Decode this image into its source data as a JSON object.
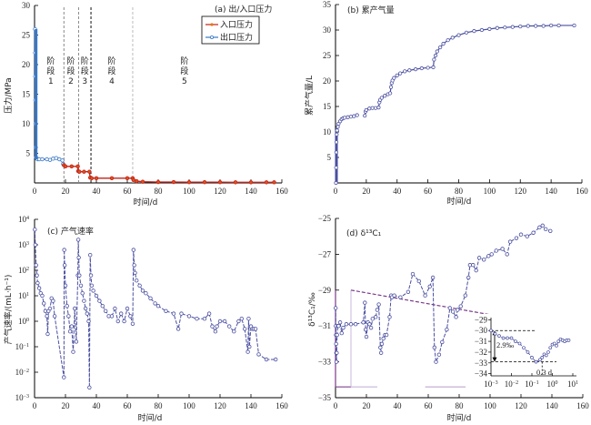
{
  "chart_data": [
    {
      "id": "a",
      "type": "line",
      "title": "(a) 出/入口压力",
      "xlabel": "时间/d",
      "ylabel": "压力/MPa",
      "xlim": [
        0,
        160
      ],
      "ylim": [
        0,
        30
      ],
      "xticks": [
        0,
        20,
        40,
        60,
        80,
        100,
        120,
        140,
        160
      ],
      "yticks": [
        5,
        10,
        15,
        20,
        25,
        30
      ],
      "legend_position": "top-right",
      "legend": [
        "入口压力",
        "出口压力"
      ],
      "stage_lines": [
        {
          "x": 19,
          "style": "gray-dashed"
        },
        {
          "x": 28.5,
          "style": "gray-dashed"
        },
        {
          "x": 36.5,
          "style": "black-dashed"
        },
        {
          "x": 63.5,
          "style": "lightgray-dashed"
        }
      ],
      "stages": [
        {
          "label": "阶段",
          "num": "1",
          "x": 10.5
        },
        {
          "label": "阶段",
          "num": "2",
          "x": 23.5
        },
        {
          "label": "阶段",
          "num": "3",
          "x": 32.5
        },
        {
          "label": "阶段",
          "num": "4",
          "x": 50
        },
        {
          "label": "阶段",
          "num": "5",
          "x": 97
        }
      ],
      "series": [
        {
          "name": "出口压力",
          "color": "#3a78c4",
          "x": [
            0.3,
            0.35,
            0.4,
            0.5,
            0.6,
            0.8,
            1,
            1.5,
            2,
            3,
            5,
            8,
            10,
            12,
            14,
            16,
            18,
            18.5,
            19
          ],
          "y": [
            26,
            22,
            18,
            14,
            10,
            6,
            4.3,
            4.1,
            4.0,
            4.0,
            4.0,
            4.0,
            3.9,
            4.1,
            4.2,
            4.0,
            3.8,
            3.2,
            3.0
          ]
        },
        {
          "name": "入口压力",
          "color": "#c0201a",
          "x": [
            19,
            20,
            24,
            28,
            28.2,
            29,
            32,
            35.5,
            36,
            37,
            40,
            50,
            60,
            63.5,
            64,
            66,
            70,
            80,
            90,
            100,
            110,
            120,
            130,
            140,
            150,
            155
          ],
          "y": [
            3.0,
            2.8,
            2.8,
            2.8,
            2.0,
            1.9,
            1.9,
            1.9,
            0.9,
            0.8,
            0.8,
            0.8,
            0.8,
            0.8,
            0.5,
            0.3,
            0.2,
            0.15,
            0.15,
            0.12,
            0.12,
            0.12,
            0.1,
            0.1,
            0.1,
            0.1
          ]
        }
      ]
    },
    {
      "id": "b",
      "type": "scatter",
      "title": "(b) 累产气量",
      "xlabel": "时间/d",
      "ylabel": "累产气量/L",
      "xlim": [
        0,
        160
      ],
      "ylim": [
        0,
        35
      ],
      "xticks": [
        0,
        20,
        40,
        60,
        80,
        100,
        120,
        140,
        160
      ],
      "yticks": [
        5,
        10,
        15,
        20,
        25,
        30,
        35
      ],
      "series": [
        {
          "name": "累产气量",
          "color": "#4a4fa0",
          "x": [
            0.3,
            0.4,
            0.5,
            0.6,
            0.8,
            1,
            1.5,
            2,
            3,
            4,
            5,
            6,
            8,
            10,
            12,
            14,
            19,
            19.5,
            20,
            22,
            24,
            26,
            28,
            28.5,
            29,
            30,
            32,
            34,
            35.5,
            36,
            36.5,
            37,
            38,
            40,
            42,
            45,
            48,
            52,
            56,
            60,
            63.5,
            64,
            65,
            66,
            68,
            70,
            73,
            76,
            80,
            85,
            90,
            95,
            100,
            105,
            110,
            115,
            120,
            125,
            130,
            135,
            140,
            145,
            155
          ],
          "y": [
            0,
            3,
            6,
            8,
            9.5,
            10.3,
            11,
            11.6,
            12.1,
            12.5,
            12.7,
            12.8,
            12.9,
            13.0,
            13.1,
            13.3,
            13.2,
            14.0,
            14.3,
            14.6,
            14.7,
            14.7,
            14.8,
            15.8,
            16.3,
            16.7,
            17.1,
            17.4,
            17.6,
            18.8,
            19.6,
            20.1,
            20.6,
            21.1,
            21.5,
            21.9,
            22.1,
            22.3,
            22.5,
            22.6,
            22.7,
            24.2,
            25.0,
            25.8,
            26.6,
            27.3,
            28.0,
            28.5,
            29.0,
            29.5,
            29.8,
            30.0,
            30.2,
            30.4,
            30.5,
            30.6,
            30.7,
            30.8,
            30.8,
            30.8,
            30.9,
            30.9,
            30.9
          ]
        }
      ]
    },
    {
      "id": "c",
      "type": "line",
      "title": "(c) 产气速率",
      "xlabel": "时间/d",
      "ylabel": "产气速率/(mL·h⁻¹)",
      "xlim": [
        0,
        160
      ],
      "ylim_log10": [
        -3,
        4
      ],
      "xticks": [
        0,
        20,
        40,
        60,
        80,
        100,
        120,
        140,
        160
      ],
      "ytick_exponents": [
        4,
        3,
        2,
        1,
        0,
        -1,
        -2,
        -3
      ],
      "series": [
        {
          "name": "产气速率",
          "color": "#4a4fa0",
          "x": [
            0.2,
            0.5,
            1,
            1.5,
            2,
            3,
            4,
            5,
            6,
            7,
            8,
            8.5,
            9,
            10,
            11,
            12,
            13,
            19,
            19.2,
            19.5,
            20,
            21,
            22,
            23,
            24,
            25,
            26,
            27,
            28,
            28.3,
            28.6,
            29,
            30,
            31,
            32,
            33,
            34,
            35,
            35.5,
            36,
            36.5,
            37,
            38,
            40,
            42,
            44,
            46,
            48,
            50,
            52,
            54,
            56,
            58,
            60,
            62,
            63.5,
            64,
            64.5,
            65,
            66,
            68,
            70,
            72,
            75,
            78,
            80,
            85,
            90,
            93,
            95,
            100,
            105,
            110,
            113,
            115,
            117,
            118,
            120,
            123,
            126,
            129,
            132,
            134,
            136,
            138,
            138.5,
            139,
            140,
            141,
            142,
            143,
            145,
            150,
            156
          ],
          "log10y": [
            3.6,
            3.0,
            2.2,
            1.8,
            1.5,
            1.3,
            1.1,
            1.0,
            0.7,
            0.4,
            0.2,
            -0.5,
            0.4,
            0.5,
            0.9,
            0.8,
            0.2,
            -2.2,
            2.8,
            2.2,
            1.4,
            0.6,
            0.2,
            -0.4,
            -0.2,
            -1.2,
            0.5,
            -0.8,
            1.8,
            3.2,
            2.5,
            1.8,
            1.4,
            1.1,
            0.8,
            0.5,
            0.3,
            0.0,
            -2.6,
            2.6,
            1.8,
            1.4,
            1.2,
            1.0,
            0.8,
            0.6,
            0.4,
            0.2,
            0.2,
            0.5,
            0.0,
            0.3,
            0.0,
            0.5,
            0.2,
            -0.1,
            2.8,
            2.2,
            1.9,
            1.6,
            1.4,
            1.2,
            1.1,
            0.9,
            0.7,
            0.6,
            0.4,
            0.3,
            -0.3,
            0.3,
            0.2,
            0.1,
            0.1,
            0.3,
            -0.2,
            -0.4,
            -0.2,
            0.0,
            0.0,
            -0.2,
            -0.4,
            0.0,
            0.1,
            -0.3,
            -1.2,
            0.1,
            -1.0,
            -0.2,
            -0.3,
            -0.3,
            -0.3,
            -1.3,
            -1.5,
            -1.5
          ]
        }
      ]
    },
    {
      "id": "d",
      "type": "line",
      "title": "(d) δ¹³C₁",
      "xlabel": "时间/d",
      "ylabel": "δ¹³C₁/‰",
      "xlim": [
        0,
        160
      ],
      "ylim": [
        -35,
        -25
      ],
      "xticks": [
        0,
        20,
        40,
        60,
        80,
        100,
        120,
        140,
        160
      ],
      "yticks": [
        -25,
        -27,
        -29,
        -31,
        -33,
        -35
      ],
      "trend_line": {
        "x": [
          10,
          102
        ],
        "y": [
          -29.0,
          -30.4
        ],
        "color": "#7a3a8a"
      },
      "series": [
        {
          "name": "δ¹³C₁",
          "color": "#4a4fa0",
          "x": [
            0.1,
            0.2,
            0.3,
            0.4,
            0.5,
            0.6,
            0.8,
            1,
            1.5,
            2,
            3,
            4,
            5,
            7,
            10,
            13,
            18,
            19,
            19.5,
            20,
            21,
            22,
            23,
            24,
            26,
            27,
            28,
            29,
            29.5,
            30,
            31,
            32,
            33,
            35,
            36,
            36.5,
            38,
            42,
            47,
            50,
            54,
            58,
            61,
            63,
            64,
            65,
            67,
            69,
            72,
            74,
            76,
            78,
            79,
            81,
            84,
            86,
            87,
            89,
            91,
            93,
            96,
            99,
            101,
            104,
            108,
            111,
            113,
            117,
            120,
            124,
            128,
            132,
            134,
            136,
            139
          ],
          "y": [
            -30.0,
            -31.0,
            -31.5,
            -32.0,
            -32.5,
            -33.0,
            -32.5,
            -31.5,
            -31.0,
            -31.0,
            -30.8,
            -31.4,
            -31.1,
            -30.9,
            -30.9,
            -30.9,
            -30.8,
            -29.7,
            -31.2,
            -31.6,
            -30.8,
            -30.9,
            -31.1,
            -30.6,
            -30.5,
            -30.1,
            -29.8,
            -32.2,
            -32.5,
            -32.0,
            -31.7,
            -31.5,
            -31.5,
            -30.5,
            -29.3,
            -29.4,
            -29.3,
            -29.4,
            -29.1,
            -28.1,
            -28.5,
            -29.3,
            -28.8,
            -28.3,
            -32.2,
            -33.0,
            -32.6,
            -31.9,
            -31.2,
            -30.0,
            -30.2,
            -30.5,
            -30.1,
            -29.9,
            -29.3,
            -28.3,
            -27.6,
            -27.6,
            -27.9,
            -27.2,
            -27.3,
            -27.1,
            -27.0,
            -26.8,
            -26.7,
            -27.0,
            -26.3,
            -26.1,
            -25.9,
            -26.0,
            -25.8,
            -25.5,
            -25.4,
            -25.6,
            -25.7
          ]
        }
      ],
      "inset": {
        "xscale": "log",
        "xtick_exponents": [
          -3,
          -2,
          -1,
          0,
          1
        ],
        "yticks": [
          -29,
          -30,
          -31,
          -32,
          -33,
          -34
        ],
        "ylim": [
          -34.2,
          -28.8
        ],
        "annotations": {
          "delta": "2.9‰",
          "time": "0.3 d"
        },
        "series": {
          "log10x": [
            -3,
            -2.8,
            -2.6,
            -2.4,
            -2.2,
            -2.0,
            -1.8,
            -1.6,
            -1.4,
            -1.2,
            -1.0,
            -0.8,
            -0.6,
            -0.5,
            -0.4,
            -0.3,
            -0.2,
            -0.1,
            0.0,
            0.1,
            0.2,
            0.3,
            0.4,
            0.5,
            0.6,
            0.7,
            0.8
          ],
          "y": [
            -30.0,
            -30.3,
            -30.5,
            -30.7,
            -30.7,
            -30.7,
            -31.0,
            -31.2,
            -31.6,
            -32.0,
            -32.5,
            -32.9,
            -32.7,
            -32.5,
            -32.2,
            -32.3,
            -32.0,
            -31.6,
            -31.3,
            -31.2,
            -31.4,
            -31.0,
            -30.8,
            -30.9,
            -31.0,
            -30.9,
            -30.9
          ]
        }
      }
    }
  ]
}
